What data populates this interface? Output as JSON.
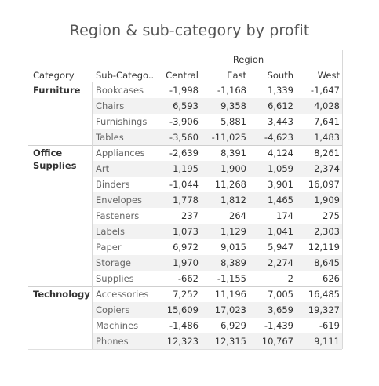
{
  "chart_data": {
    "type": "table",
    "title": "Region & sub-category by profit",
    "column_group_label": "Region",
    "row_headers": [
      "Category",
      "Sub-Catego.."
    ],
    "columns": [
      "Central",
      "East",
      "South",
      "West"
    ],
    "groups": [
      {
        "category": "Furniture",
        "rows": [
          {
            "sub": "Bookcases",
            "values": [
              "-1,998",
              "-1,168",
              "1,339",
              "-1,647"
            ]
          },
          {
            "sub": "Chairs",
            "values": [
              "6,593",
              "9,358",
              "6,612",
              "4,028"
            ]
          },
          {
            "sub": "Furnishings",
            "values": [
              "-3,906",
              "5,881",
              "3,443",
              "7,641"
            ]
          },
          {
            "sub": "Tables",
            "values": [
              "-3,560",
              "-11,025",
              "-4,623",
              "1,483"
            ]
          }
        ]
      },
      {
        "category": "Office Supplies",
        "rows": [
          {
            "sub": "Appliances",
            "values": [
              "-2,639",
              "8,391",
              "4,124",
              "8,261"
            ]
          },
          {
            "sub": "Art",
            "values": [
              "1,195",
              "1,900",
              "1,059",
              "2,374"
            ]
          },
          {
            "sub": "Binders",
            "values": [
              "-1,044",
              "11,268",
              "3,901",
              "16,097"
            ]
          },
          {
            "sub": "Envelopes",
            "values": [
              "1,778",
              "1,812",
              "1,465",
              "1,909"
            ]
          },
          {
            "sub": "Fasteners",
            "values": [
              "237",
              "264",
              "174",
              "275"
            ]
          },
          {
            "sub": "Labels",
            "values": [
              "1,073",
              "1,129",
              "1,041",
              "2,303"
            ]
          },
          {
            "sub": "Paper",
            "values": [
              "6,972",
              "9,015",
              "5,947",
              "12,119"
            ]
          },
          {
            "sub": "Storage",
            "values": [
              "1,970",
              "8,389",
              "2,274",
              "8,645"
            ]
          },
          {
            "sub": "Supplies",
            "values": [
              "-662",
              "-1,155",
              "2",
              "626"
            ]
          }
        ]
      },
      {
        "category": "Technology",
        "rows": [
          {
            "sub": "Accessories",
            "values": [
              "7,252",
              "11,196",
              "7,005",
              "16,485"
            ]
          },
          {
            "sub": "Copiers",
            "values": [
              "15,609",
              "17,023",
              "3,659",
              "19,327"
            ]
          },
          {
            "sub": "Machines",
            "values": [
              "-1,486",
              "6,929",
              "-1,439",
              "-619"
            ]
          },
          {
            "sub": "Phones",
            "values": [
              "12,323",
              "12,315",
              "10,767",
              "9,111"
            ]
          }
        ]
      }
    ]
  }
}
